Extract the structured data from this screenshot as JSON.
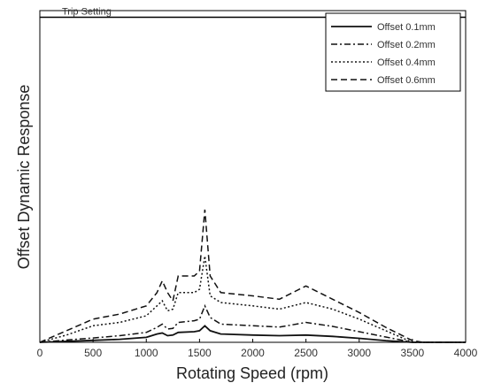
{
  "chart_data": {
    "type": "line",
    "xlabel": "Rotating Speed (rpm)",
    "ylabel": "Offset Dynamic Response",
    "xlim": [
      0,
      4000
    ],
    "ylim": [
      0,
      1
    ],
    "xticks": [
      "0",
      "500",
      "1000",
      "1500",
      "2000",
      "2500",
      "3000",
      "3500",
      "4000"
    ],
    "yticks_visible": false,
    "grid": false,
    "legend_position": "top-right",
    "annotation": {
      "text": "Trip Setting",
      "y": 0.98
    },
    "x": [
      0,
      250,
      500,
      750,
      1000,
      1100,
      1150,
      1200,
      1250,
      1300,
      1450,
      1500,
      1550,
      1600,
      1700,
      2000,
      2250,
      2500,
      2750,
      3000,
      3250,
      3500,
      3600,
      4000
    ],
    "series": [
      {
        "name": "Offset 0.1mm",
        "style": "solid",
        "values": [
          0.0,
          0.003,
          0.006,
          0.009,
          0.015,
          0.025,
          0.028,
          0.02,
          0.022,
          0.03,
          0.032,
          0.035,
          0.05,
          0.035,
          0.025,
          0.022,
          0.02,
          0.022,
          0.018,
          0.012,
          0.005,
          0.0,
          0.0,
          0.0
        ]
      },
      {
        "name": "Offset 0.2mm",
        "style": "dashdot",
        "values": [
          0.0,
          0.007,
          0.013,
          0.02,
          0.03,
          0.045,
          0.055,
          0.04,
          0.042,
          0.06,
          0.065,
          0.07,
          0.11,
          0.075,
          0.055,
          0.05,
          0.046,
          0.06,
          0.048,
          0.032,
          0.016,
          0.0,
          0.0,
          0.0
        ]
      },
      {
        "name": "Offset 0.4mm",
        "style": "dotted",
        "values": [
          0.0,
          0.022,
          0.05,
          0.06,
          0.08,
          0.11,
          0.125,
          0.095,
          0.1,
          0.15,
          0.15,
          0.16,
          0.26,
          0.14,
          0.12,
          0.11,
          0.1,
          0.12,
          0.1,
          0.07,
          0.035,
          0.0,
          0.0,
          0.0
        ]
      },
      {
        "name": "Offset 0.6mm",
        "style": "dashed",
        "values": [
          0.0,
          0.035,
          0.07,
          0.085,
          0.11,
          0.15,
          0.185,
          0.15,
          0.125,
          0.2,
          0.2,
          0.215,
          0.4,
          0.2,
          0.15,
          0.14,
          0.13,
          0.17,
          0.13,
          0.09,
          0.045,
          0.005,
          0.0,
          0.0
        ]
      }
    ]
  }
}
